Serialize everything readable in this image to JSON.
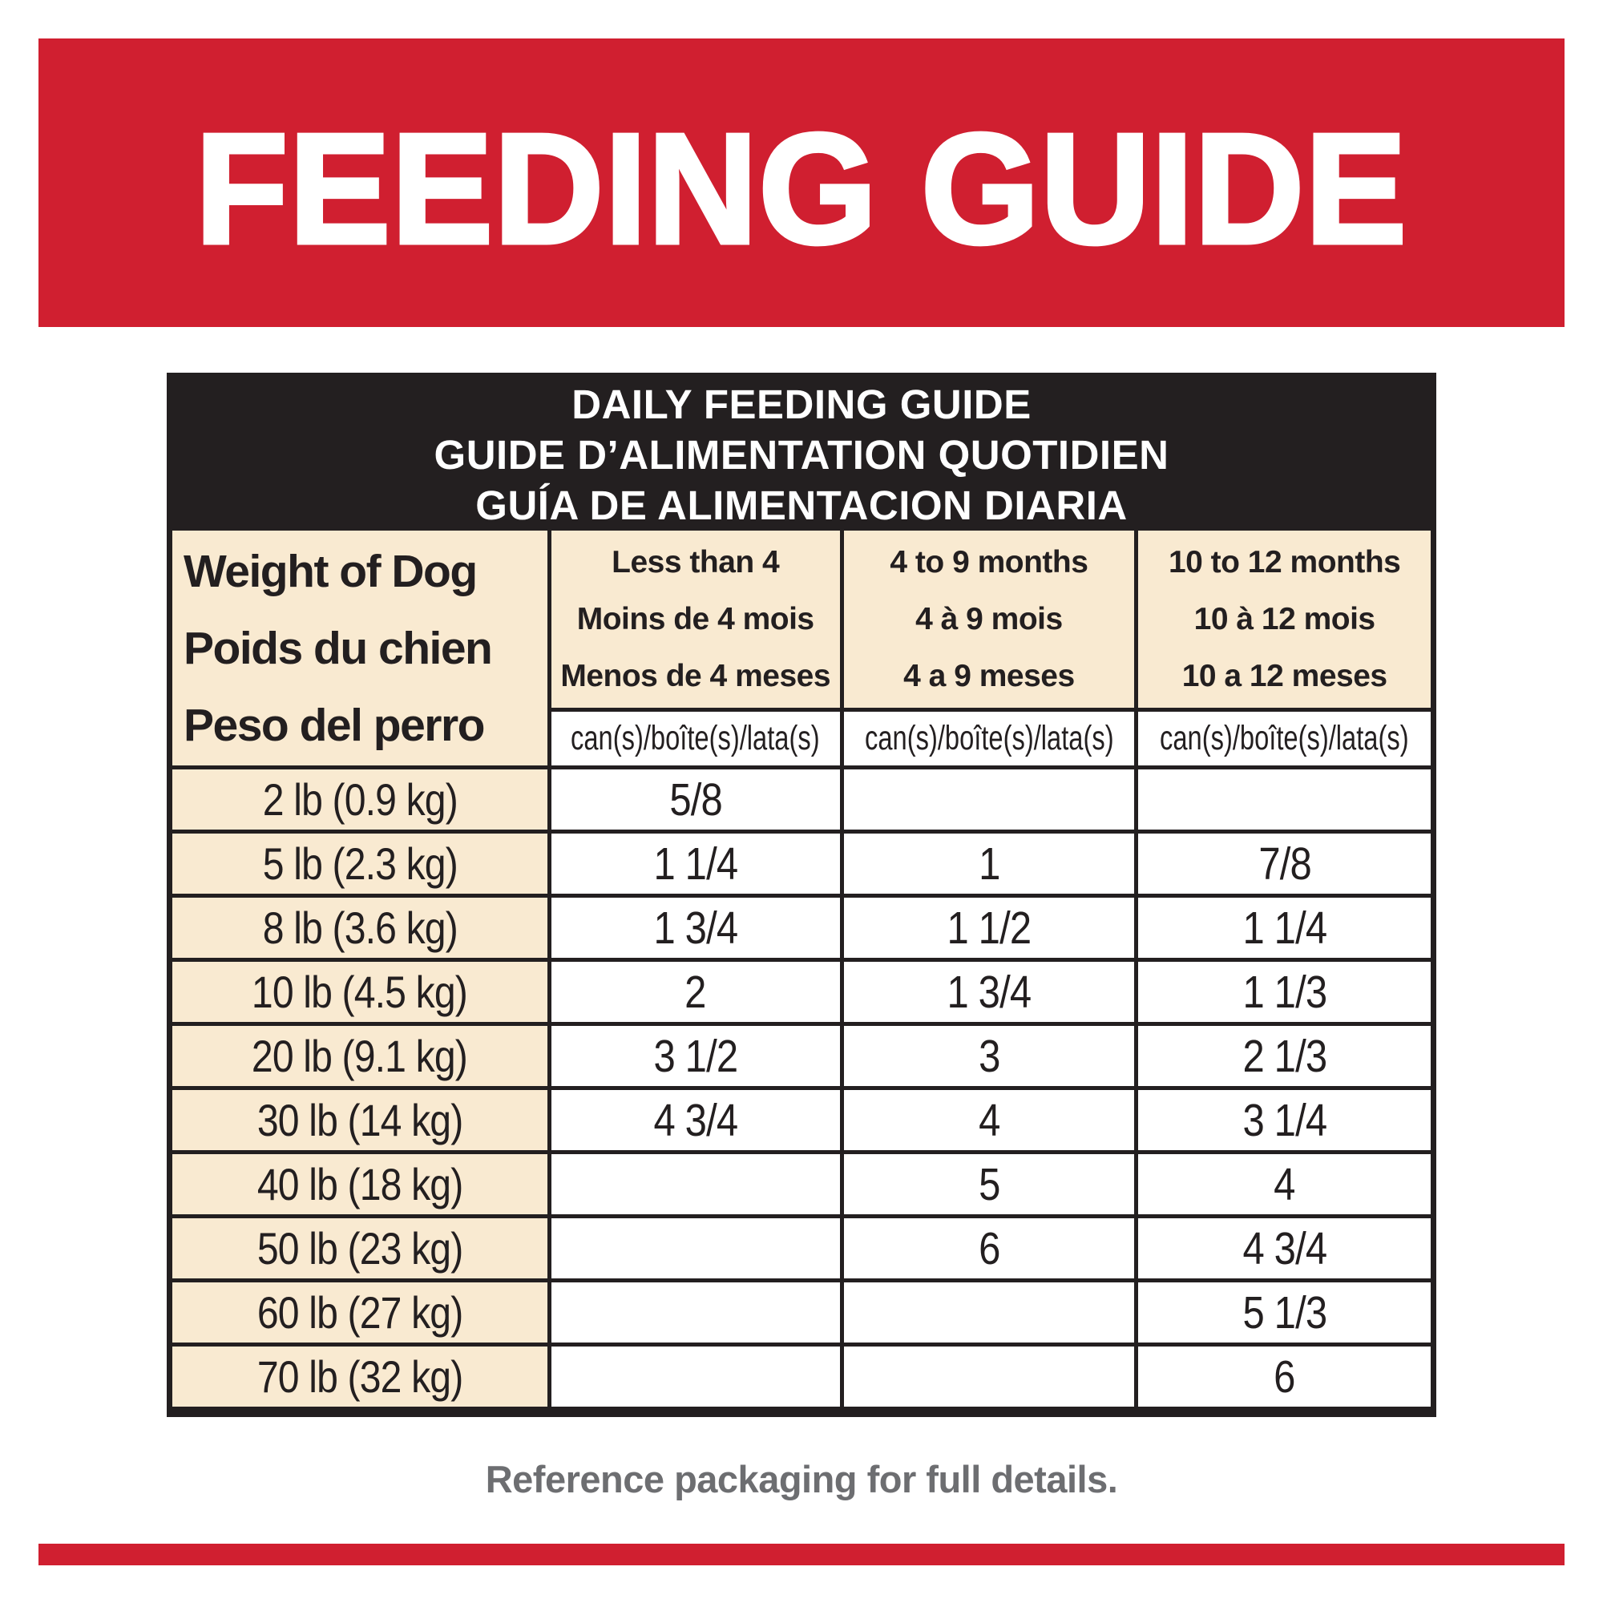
{
  "banner": {
    "title": "FEEDING GUIDE"
  },
  "table": {
    "title_lines": [
      "DAILY FEEDING GUIDE",
      "GUIDE D’ALIMENTATION QUOTIDIEN",
      "GUÍA DE ALIMENTACION DIARIA"
    ],
    "weight_header_lines": [
      "Weight of Dog",
      "Poids du chien",
      "Peso del perro"
    ],
    "age_columns": [
      {
        "lines": [
          "Less than 4",
          "Moins de 4 mois",
          "Menos de 4 meses"
        ]
      },
      {
        "lines": [
          "4 to 9 months",
          "4 à 9 mois",
          "4 a 9 meses"
        ]
      },
      {
        "lines": [
          "10 to 12 months",
          "10 à 12 mois",
          "10 a 12 meses"
        ]
      }
    ],
    "unit_label": "can(s)/boîte(s)/lata(s)",
    "rows": [
      {
        "weight": "2 lb (0.9 kg)",
        "values": [
          "5/8",
          "",
          ""
        ]
      },
      {
        "weight": "5 lb (2.3 kg)",
        "values": [
          "1 1/4",
          "1",
          "7/8"
        ]
      },
      {
        "weight": "8 lb (3.6 kg)",
        "values": [
          "1 3/4",
          "1 1/2",
          "1 1/4"
        ]
      },
      {
        "weight": "10 lb (4.5 kg)",
        "values": [
          "2",
          "1 3/4",
          "1 1/3"
        ]
      },
      {
        "weight": "20 lb (9.1 kg)",
        "values": [
          "3 1/2",
          "3",
          "2 1/3"
        ]
      },
      {
        "weight": "30 lb (14 kg)",
        "values": [
          "4 3/4",
          "4",
          "3 1/4"
        ]
      },
      {
        "weight": "40 lb (18 kg)",
        "values": [
          "",
          "5",
          "4"
        ]
      },
      {
        "weight": "50 lb (23 kg)",
        "values": [
          "",
          "6",
          "4 3/4"
        ]
      },
      {
        "weight": "60 lb (27 kg)",
        "values": [
          "",
          "",
          "5 1/3"
        ]
      },
      {
        "weight": "70 lb (32 kg)",
        "values": [
          "",
          "",
          "6"
        ]
      }
    ]
  },
  "footer": {
    "note": "Reference packaging for full details."
  },
  "colors": {
    "brand_red": "#d01f30",
    "header_black": "#231f20",
    "cell_cream": "#f9ead1",
    "note_gray": "#6d6e71"
  }
}
